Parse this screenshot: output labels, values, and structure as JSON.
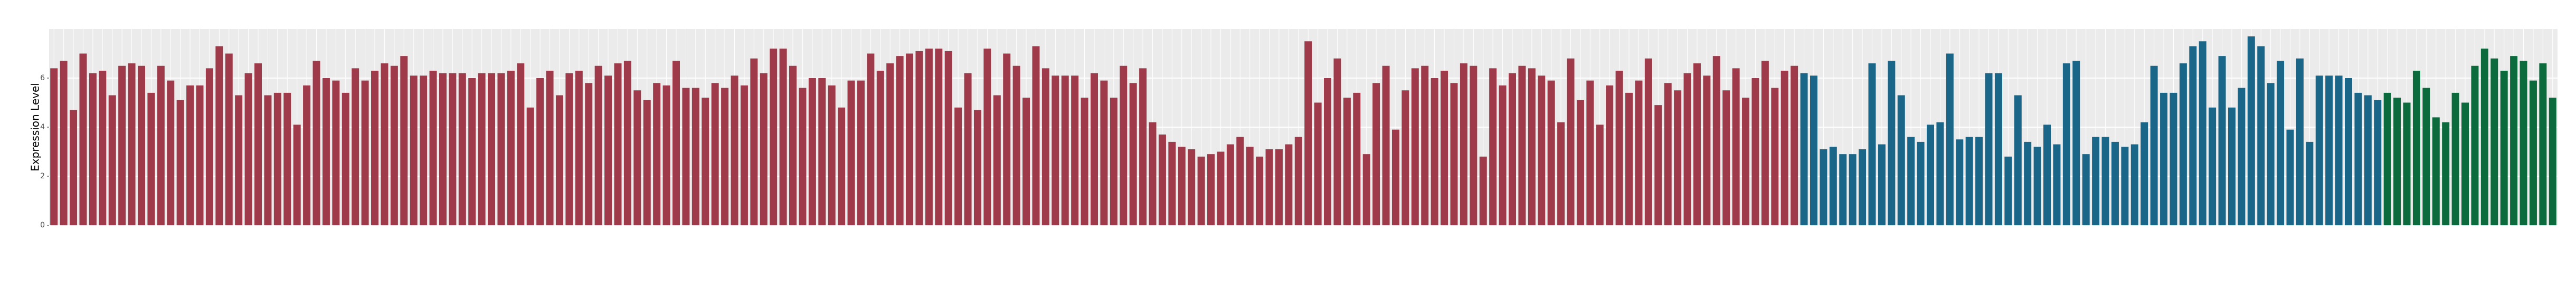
{
  "chart_data": {
    "type": "bar",
    "y_label": "Expression Level",
    "ylim": [
      0,
      8
    ],
    "yticks": [
      0,
      2,
      4,
      6
    ],
    "grid": true,
    "series": [
      {
        "color": "#9e3a49",
        "categories": [
          null,
          null,
          null,
          null,
          null,
          null,
          null,
          null,
          null,
          null,
          null,
          null,
          null,
          null,
          null,
          null,
          null,
          null,
          null,
          null,
          null,
          null,
          null,
          null,
          null,
          null,
          null,
          null,
          null,
          null,
          null,
          null,
          null,
          null,
          null,
          null,
          null,
          null,
          null,
          null,
          null,
          null,
          null,
          null,
          null,
          null,
          null,
          null,
          null,
          null,
          null,
          null,
          null,
          null,
          null,
          null,
          null,
          null,
          null,
          null,
          null,
          null,
          null,
          null,
          null,
          null,
          null,
          null,
          null,
          null,
          null,
          null,
          null,
          null,
          null,
          null,
          null,
          null,
          null,
          null,
          null,
          null,
          null,
          null,
          null,
          null,
          null,
          null,
          null,
          null,
          null,
          null,
          null,
          null,
          null,
          null,
          null,
          null,
          null,
          null,
          null,
          null,
          null,
          null,
          null,
          null,
          null,
          null,
          null,
          null,
          null,
          null,
          null,
          null,
          null,
          null,
          null,
          null,
          null,
          null,
          null,
          null,
          null,
          null,
          null,
          null,
          null,
          null,
          null,
          null,
          null,
          null,
          null,
          null,
          null,
          null,
          null,
          null,
          null,
          null,
          null,
          null,
          null,
          null,
          null,
          null,
          null,
          null,
          null,
          null,
          null,
          null,
          null,
          null,
          null,
          null,
          null,
          null,
          null,
          null,
          null,
          null,
          null,
          null,
          null,
          null,
          null,
          null,
          null,
          null,
          null,
          null,
          null,
          null,
          null,
          null,
          null,
          null,
          null,
          null
        ],
        "values": [
          6.4,
          6.7,
          4.7,
          7.0,
          6.2,
          6.3,
          5.3,
          6.5,
          6.6,
          6.5,
          5.4,
          6.5,
          5.9,
          5.1,
          5.7,
          5.7,
          6.4,
          7.3,
          7.0,
          5.3,
          6.2,
          6.6,
          5.3,
          5.4,
          5.4,
          4.1,
          5.7,
          6.7,
          6.0,
          5.9,
          5.4,
          6.4,
          5.9,
          6.3,
          6.6,
          6.5,
          6.9,
          6.1,
          6.1,
          6.3,
          6.2,
          6.2,
          6.2,
          6.0,
          6.2,
          6.2,
          6.2,
          6.3,
          6.6,
          4.8,
          6.0,
          6.3,
          5.3,
          6.2,
          6.3,
          5.8,
          6.5,
          6.1,
          6.6,
          6.7,
          5.5,
          5.1,
          5.8,
          5.7,
          6.7,
          5.6,
          5.6,
          5.2,
          5.8,
          5.6,
          6.1,
          5.7,
          6.8,
          6.2,
          7.2,
          7.2,
          6.5,
          5.6,
          6.0,
          6.0,
          5.7,
          4.8,
          5.9,
          5.9,
          7.0,
          6.3,
          6.6,
          6.9,
          7.0,
          7.1,
          7.2,
          7.2,
          7.1,
          4.8,
          6.2,
          4.7,
          7.2,
          5.3,
          7.0,
          6.5,
          5.2,
          7.3,
          6.4,
          6.1,
          6.1,
          6.1,
          5.2,
          6.2,
          5.9,
          5.2,
          6.5,
          5.8,
          6.4,
          4.2,
          3.7,
          3.4,
          3.2,
          3.1,
          2.8,
          2.9,
          3.0,
          3.3,
          3.6,
          3.2,
          2.8,
          3.1,
          3.1,
          3.3,
          3.6,
          7.5,
          5.0,
          6.0,
          6.8,
          5.2,
          5.4,
          2.9,
          5.8,
          6.5,
          3.9,
          5.5,
          6.4,
          6.5,
          6.0,
          6.3,
          5.8,
          6.6,
          6.5,
          2.8,
          6.4,
          5.7,
          6.2,
          6.5,
          6.4,
          6.1,
          5.9,
          4.2,
          6.8,
          5.1,
          5.9,
          4.1,
          5.7,
          6.3,
          5.4,
          5.9,
          6.8,
          4.9,
          5.8,
          5.5,
          6.2,
          6.6,
          6.1,
          6.9,
          5.5,
          6.4,
          5.2,
          6.0,
          6.7,
          5.6,
          6.3,
          6.5
        ]
      },
      {
        "color": "#1a6689",
        "categories": [
          null,
          null,
          null,
          null,
          null,
          null,
          null,
          null,
          null,
          null,
          null,
          null,
          null,
          null,
          null,
          null,
          null,
          null,
          null,
          null,
          null,
          null,
          null,
          null,
          null,
          null,
          null,
          null,
          null,
          null,
          null,
          null,
          null,
          null,
          null,
          null,
          null,
          null,
          null,
          null,
          null,
          null,
          null,
          null,
          null,
          null,
          null,
          null,
          null,
          null,
          null,
          null,
          null,
          null,
          null,
          null,
          null,
          null,
          null,
          null
        ],
        "values": [
          6.2,
          6.1,
          3.1,
          3.2,
          2.9,
          2.9,
          3.1,
          6.6,
          3.3,
          6.7,
          5.3,
          3.6,
          3.4,
          4.1,
          4.2,
          7.0,
          3.5,
          3.6,
          3.6,
          6.2,
          6.2,
          2.8,
          5.3,
          3.4,
          3.2,
          4.1,
          3.3,
          6.6,
          6.7,
          2.9,
          3.6,
          3.6,
          3.4,
          3.2,
          3.3,
          4.2,
          6.5,
          5.4,
          5.4,
          6.6,
          7.3,
          7.5,
          4.8,
          6.9,
          4.8,
          5.6,
          7.7,
          7.3,
          5.8,
          6.7,
          3.9,
          6.8,
          3.4,
          6.1,
          6.1,
          6.1,
          6.0,
          5.4,
          5.3,
          5.1
        ]
      },
      {
        "color": "#0c6b3c",
        "categories": [
          null,
          null,
          null,
          null,
          null,
          null,
          null,
          null,
          null,
          null,
          null,
          null,
          null,
          null,
          null,
          null,
          null,
          null
        ],
        "values": [
          5.4,
          5.2,
          5.0,
          6.3,
          5.6,
          4.4,
          4.2,
          5.4,
          5.0,
          6.5,
          7.2,
          6.8,
          6.3,
          6.9,
          6.7,
          5.9,
          6.6,
          5.2
        ]
      }
    ]
  }
}
